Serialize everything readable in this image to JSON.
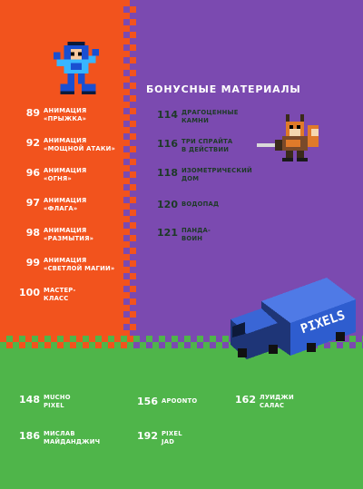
{
  "section_title": "БОНУСНЫЕ МАТЕРИАЛЫ",
  "left_entries": [
    {
      "num": "89",
      "line1": "АНИМАЦИЯ",
      "line2": "«ПРЫЖКА»"
    },
    {
      "num": "92",
      "line1": "АНИМАЦИЯ",
      "line2": "«МОЩНОЙ АТАКИ»"
    },
    {
      "num": "96",
      "line1": "АНИМАЦИЯ",
      "line2": "«ОГНЯ»"
    },
    {
      "num": "97",
      "line1": "АНИМАЦИЯ",
      "line2": "«ФЛАГА»"
    },
    {
      "num": "98",
      "line1": "АНИМАЦИЯ",
      "line2": "«РАЗМЫТИЯ»"
    },
    {
      "num": "99",
      "line1": "АНИМАЦИЯ",
      "line2": "«СВЕТЛОЙ МАГИИ»"
    },
    {
      "num": "100",
      "line1": "МАСТЕР-",
      "line2": "КЛАСС"
    }
  ],
  "bonus_entries": [
    {
      "num": "114",
      "line1": "ДРАГОЦЕННЫЕ",
      "line2": "КАМНИ"
    },
    {
      "num": "116",
      "line1": "ТРИ СПРАЙТА",
      "line2": "В ДЕЙСТВИИ"
    },
    {
      "num": "118",
      "line1": "ИЗОМЕТРИЧЕСКИЙ",
      "line2": "ДОМ"
    },
    {
      "num": "120",
      "line1": "ВОДОПАД",
      "line2": ""
    },
    {
      "num": "121",
      "line1": "ПАНДА-",
      "line2": "ВОИН"
    }
  ],
  "artist_entries": [
    {
      "num": "148",
      "line1": "MUCHO",
      "line2": "PIXEL"
    },
    {
      "num": "156",
      "line1": "APOONTO",
      "line2": ""
    },
    {
      "num": "162",
      "line1": "ЛУИДЖИ",
      "line2": "САЛАС"
    },
    {
      "num": "186",
      "line1": "МИСЛАВ",
      "line2": "МАЙДАНДЖИЧ"
    },
    {
      "num": "192",
      "line1": "PIXEL",
      "line2": "JAD"
    }
  ],
  "truck_label": "PIXELS",
  "colors": {
    "orange": "#f2531d",
    "purple": "#7b4ab0",
    "green": "#4fb54a",
    "text_dark": "#1d3a26"
  },
  "icons": [
    "pixel-robot-hero-icon",
    "pixel-fox-warrior-icon",
    "pixel-truck-icon"
  ]
}
